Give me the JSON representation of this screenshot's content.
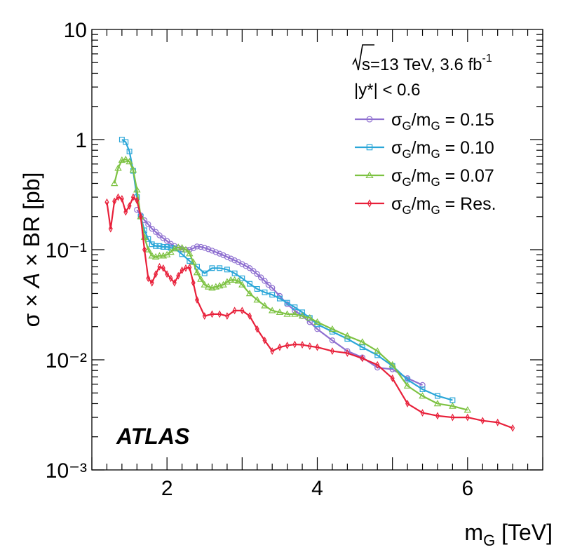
{
  "chart_data": {
    "type": "line",
    "ylabel": "σ × A × BR [pb]",
    "xlabel": "m_G [TeV]",
    "xlim": [
      1.0,
      7.0
    ],
    "ylim": [
      0.001,
      10
    ],
    "y_scale": "log",
    "x_ticks": [
      2,
      4,
      6
    ],
    "y_ticks": [
      {
        "value": 10,
        "label": "10"
      },
      {
        "value": 1,
        "label": "1"
      },
      {
        "value": 0.1,
        "label": "10⁻¹"
      },
      {
        "value": 0.01,
        "label": "10⁻²"
      },
      {
        "value": 0.001,
        "label": "10⁻³"
      }
    ],
    "annotations": {
      "sqrt_s": "s=13 TeV, 3.6 fb",
      "lumi_exp": "-1",
      "ystar_cut": "|y*| < 0.6",
      "experiment": "ATLAS"
    },
    "legend_position": "top-right",
    "series": [
      {
        "name": "σG/mG = 0.15",
        "label_main": "σ",
        "label_sub": "G",
        "label_mid": "/m",
        "label_rest": " = 0.15",
        "color": "#8e6fd0",
        "marker": "circle",
        "x": [
          1.6,
          1.65,
          1.7,
          1.75,
          1.8,
          1.85,
          1.9,
          1.95,
          2.0,
          2.05,
          2.1,
          2.15,
          2.2,
          2.25,
          2.3,
          2.35,
          2.4,
          2.45,
          2.5,
          2.55,
          2.6,
          2.65,
          2.7,
          2.75,
          2.8,
          2.85,
          2.9,
          2.95,
          3.0,
          3.05,
          3.1,
          3.15,
          3.2,
          3.25,
          3.3,
          3.35,
          3.4,
          3.5,
          3.6,
          3.7,
          3.8,
          3.9,
          4.0,
          4.2,
          4.4,
          4.6,
          4.8,
          5.0,
          5.2,
          5.4
        ],
        "y": [
          0.23,
          0.205,
          0.185,
          0.17,
          0.155,
          0.145,
          0.135,
          0.127,
          0.12,
          0.113,
          0.108,
          0.104,
          0.101,
          0.1,
          0.1,
          0.103,
          0.107,
          0.106,
          0.104,
          0.101,
          0.098,
          0.095,
          0.092,
          0.089,
          0.086,
          0.083,
          0.08,
          0.077,
          0.074,
          0.071,
          0.068,
          0.064,
          0.06,
          0.056,
          0.052,
          0.048,
          0.045,
          0.038,
          0.032,
          0.028,
          0.025,
          0.022,
          0.019,
          0.015,
          0.012,
          0.0105,
          0.0085,
          0.0082,
          0.0068,
          0.0059
        ]
      },
      {
        "name": "σG/mG = 0.10",
        "label_main": "σ",
        "label_sub": "G",
        "label_mid": "/m",
        "label_rest": " = 0.10",
        "color": "#2aa6d8",
        "marker": "square",
        "x": [
          1.4,
          1.45,
          1.5,
          1.55,
          1.6,
          1.65,
          1.7,
          1.75,
          1.8,
          1.85,
          1.9,
          1.95,
          2.0,
          2.05,
          2.1,
          2.2,
          2.3,
          2.4,
          2.5,
          2.6,
          2.7,
          2.8,
          2.9,
          3.0,
          3.1,
          3.2,
          3.3,
          3.4,
          3.5,
          3.6,
          3.7,
          3.8,
          3.9,
          4.0,
          4.2,
          4.4,
          4.6,
          4.8,
          5.0,
          5.2,
          5.4,
          5.6,
          5.8
        ],
        "y": [
          1.0,
          0.95,
          0.78,
          0.52,
          0.3,
          0.2,
          0.15,
          0.125,
          0.112,
          0.108,
          0.108,
          0.106,
          0.106,
          0.104,
          0.103,
          0.091,
          0.079,
          0.07,
          0.061,
          0.068,
          0.068,
          0.066,
          0.061,
          0.055,
          0.049,
          0.044,
          0.041,
          0.039,
          0.036,
          0.033,
          0.03,
          0.027,
          0.024,
          0.021,
          0.018,
          0.0155,
          0.013,
          0.011,
          0.0088,
          0.0066,
          0.0054,
          0.0047,
          0.0043
        ]
      },
      {
        "name": "σG/mG = 0.07",
        "label_main": "σ",
        "label_sub": "G",
        "label_mid": "/m",
        "label_rest": " = 0.07",
        "color": "#7dc242",
        "marker": "triangle",
        "x": [
          1.3,
          1.35,
          1.4,
          1.45,
          1.5,
          1.55,
          1.6,
          1.65,
          1.7,
          1.75,
          1.8,
          1.85,
          1.9,
          1.95,
          2.0,
          2.05,
          2.1,
          2.15,
          2.2,
          2.25,
          2.3,
          2.35,
          2.4,
          2.45,
          2.5,
          2.55,
          2.6,
          2.65,
          2.7,
          2.75,
          2.8,
          2.85,
          2.9,
          2.95,
          3.0,
          3.1,
          3.2,
          3.3,
          3.4,
          3.5,
          3.6,
          3.7,
          3.8,
          3.9,
          4.0,
          4.2,
          4.4,
          4.6,
          4.8,
          5.0,
          5.2,
          5.4,
          5.6,
          5.8,
          6.0
        ],
        "y": [
          0.4,
          0.55,
          0.65,
          0.66,
          0.63,
          0.53,
          0.35,
          0.2,
          0.13,
          0.1,
          0.088,
          0.086,
          0.088,
          0.088,
          0.09,
          0.095,
          0.102,
          0.105,
          0.104,
          0.1,
          0.092,
          0.077,
          0.062,
          0.054,
          0.048,
          0.046,
          0.045,
          0.046,
          0.047,
          0.048,
          0.051,
          0.053,
          0.053,
          0.052,
          0.048,
          0.04,
          0.035,
          0.031,
          0.028,
          0.027,
          0.026,
          0.026,
          0.025,
          0.024,
          0.022,
          0.019,
          0.0165,
          0.0145,
          0.012,
          0.009,
          0.0058,
          0.0047,
          0.004,
          0.0038,
          0.0035
        ]
      },
      {
        "name": "σG/mG = Res.",
        "label_main": "σ",
        "label_sub": "G",
        "label_mid": "/m",
        "label_rest": " = Res.",
        "color": "#e8203a",
        "marker": "diamond",
        "x": [
          1.2,
          1.25,
          1.3,
          1.35,
          1.4,
          1.45,
          1.5,
          1.55,
          1.6,
          1.65,
          1.7,
          1.75,
          1.8,
          1.85,
          1.9,
          1.95,
          2.0,
          2.05,
          2.1,
          2.15,
          2.2,
          2.25,
          2.3,
          2.35,
          2.4,
          2.5,
          2.6,
          2.7,
          2.8,
          2.9,
          3.0,
          3.1,
          3.2,
          3.3,
          3.4,
          3.5,
          3.6,
          3.7,
          3.8,
          3.9,
          4.0,
          4.2,
          4.4,
          4.6,
          4.8,
          5.0,
          5.2,
          5.4,
          5.6,
          5.8,
          6.0,
          6.2,
          6.4,
          6.6
        ],
        "y": [
          0.27,
          0.155,
          0.275,
          0.3,
          0.29,
          0.22,
          0.25,
          0.3,
          0.28,
          0.2,
          0.1,
          0.055,
          0.05,
          0.06,
          0.07,
          0.068,
          0.06,
          0.055,
          0.05,
          0.058,
          0.065,
          0.068,
          0.069,
          0.05,
          0.035,
          0.025,
          0.026,
          0.026,
          0.025,
          0.028,
          0.028,
          0.025,
          0.019,
          0.015,
          0.012,
          0.013,
          0.0135,
          0.0138,
          0.0137,
          0.0133,
          0.013,
          0.012,
          0.0115,
          0.0103,
          0.009,
          0.0068,
          0.004,
          0.0033,
          0.0031,
          0.003,
          0.003,
          0.0028,
          0.0027,
          0.0024
        ]
      }
    ]
  }
}
